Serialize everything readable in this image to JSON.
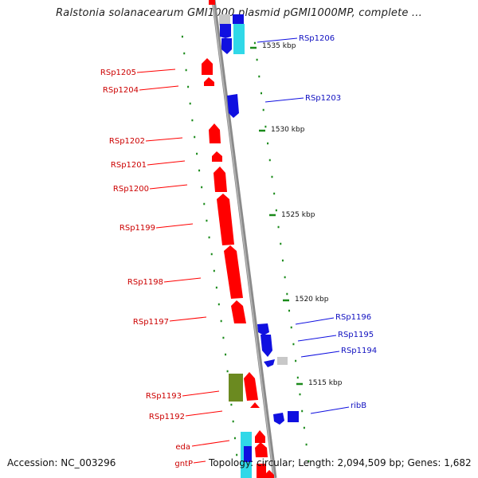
{
  "title": "Ralstonia solanacearum GMI1000 plasmid pGMI1000MP, complete ...",
  "footer": {
    "accession": "Accession: NC_003296",
    "topology": "Topology: circular; Length: 2,094,509 bp; Genes: 1,682"
  },
  "scale_labels": [
    "1535 kbp",
    "1530 kbp",
    "1525 kbp",
    "1520 kbp",
    "1515 kbp"
  ],
  "colors": {
    "forward_gene": "#ff0000",
    "reverse_gene": "#1010e0",
    "rna_gene": "#30d8e8",
    "other_feature": "#6b8a20",
    "pseudo_feature": "#c8c8c8",
    "tick": "#1a8a1a",
    "backbone": "#8a8a8a"
  },
  "left_labels": [
    "RSp1205",
    "RSp1204",
    "RSp1202",
    "RSp1201",
    "RSp1200",
    "RSp1199",
    "RSp1198",
    "RSp1197",
    "RSp1193",
    "RSp1192",
    "eda",
    "gntP"
  ],
  "right_labels": [
    "RSp1206",
    "RSp1203",
    "RSp1196",
    "RSp1195",
    "RSp1194",
    "ribB"
  ]
}
